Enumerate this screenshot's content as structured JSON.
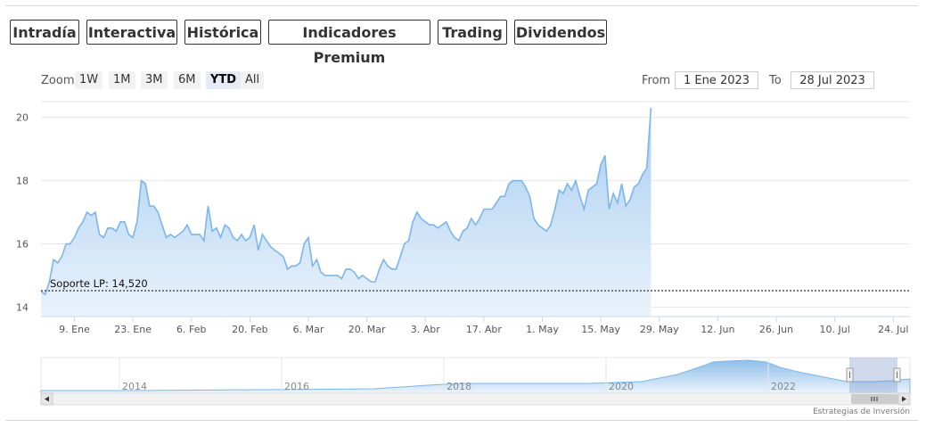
{
  "tabs": [
    {
      "label": "Intradía",
      "style": "purple",
      "active": false
    },
    {
      "label": "Interactiva",
      "style": "purple",
      "active": false
    },
    {
      "label": "Histórica",
      "style": "purple",
      "active": true
    },
    {
      "label": "Indicadores Premium",
      "style": "red",
      "active": false
    },
    {
      "label": "Trading",
      "style": "red",
      "active": false
    },
    {
      "label": "Dividendos",
      "style": "purple",
      "active": false
    }
  ],
  "zoom": {
    "label": "Zoom",
    "buttons": [
      "1W",
      "1M",
      "3M",
      "6M",
      "YTD",
      "All"
    ],
    "selected": "YTD"
  },
  "range": {
    "from_label": "From",
    "from_value": "1 Ene 2023",
    "to_label": "To",
    "to_value": "28 Jul 2023"
  },
  "credit": "Estrategias de Inversión",
  "colors": {
    "line": "#7cb5ec",
    "fill_top": "#a7cdf0",
    "fill_bottom": "#eaf3fc",
    "purple": "#7c7aa8",
    "red": "#dd7d86",
    "support": "#000000",
    "navigator_mask": "#6685c2"
  },
  "chart_data": {
    "type": "area",
    "ylim": [
      13.7,
      20.5
    ],
    "yticks": [
      14,
      16,
      18,
      20
    ],
    "xlim": [
      0,
      208
    ],
    "xtick_labels": [
      {
        "x": 8,
        "label": "9. Ene"
      },
      {
        "x": 22,
        "label": "23. Ene"
      },
      {
        "x": 36,
        "label": "6. Feb"
      },
      {
        "x": 50,
        "label": "20. Feb"
      },
      {
        "x": 64,
        "label": "6. Mar"
      },
      {
        "x": 78,
        "label": "20. Mar"
      },
      {
        "x": 92,
        "label": "3. Abr"
      },
      {
        "x": 106,
        "label": "17. Abr"
      },
      {
        "x": 120,
        "label": "1. May"
      },
      {
        "x": 134,
        "label": "15. May"
      },
      {
        "x": 148,
        "label": "29. May"
      },
      {
        "x": 162,
        "label": "12. Jun"
      },
      {
        "x": 176,
        "label": "26. Jun"
      },
      {
        "x": 190,
        "label": "10. Jul"
      },
      {
        "x": 204,
        "label": "24. Jul"
      }
    ],
    "series": [
      {
        "values": [
          [
            0,
            14.5
          ],
          [
            1,
            14.4
          ],
          [
            2,
            14.8
          ],
          [
            3,
            15.5
          ],
          [
            4,
            15.4
          ],
          [
            5,
            15.6
          ],
          [
            6,
            16.0
          ],
          [
            7,
            16.0
          ],
          [
            8,
            16.2
          ],
          [
            9,
            16.5
          ],
          [
            10,
            16.7
          ],
          [
            11,
            17.0
          ],
          [
            12,
            16.9
          ],
          [
            13,
            17.0
          ],
          [
            14,
            16.3
          ],
          [
            15,
            16.2
          ],
          [
            16,
            16.5
          ],
          [
            17,
            16.5
          ],
          [
            18,
            16.4
          ],
          [
            19,
            16.7
          ],
          [
            20,
            16.7
          ],
          [
            21,
            16.3
          ],
          [
            22,
            16.2
          ],
          [
            23,
            16.7
          ],
          [
            24,
            18.0
          ],
          [
            25,
            17.9
          ],
          [
            26,
            17.2
          ],
          [
            27,
            17.2
          ],
          [
            28,
            17.0
          ],
          [
            29,
            16.6
          ],
          [
            30,
            16.2
          ],
          [
            31,
            16.3
          ],
          [
            32,
            16.2
          ],
          [
            33,
            16.3
          ],
          [
            34,
            16.4
          ],
          [
            35,
            16.6
          ],
          [
            36,
            16.3
          ],
          [
            37,
            16.3
          ],
          [
            38,
            16.3
          ],
          [
            39,
            16.1
          ],
          [
            40,
            17.2
          ],
          [
            41,
            16.4
          ],
          [
            42,
            16.5
          ],
          [
            43,
            16.2
          ],
          [
            44,
            16.6
          ],
          [
            45,
            16.5
          ],
          [
            46,
            16.2
          ],
          [
            47,
            16.1
          ],
          [
            48,
            16.3
          ],
          [
            49,
            16.1
          ],
          [
            50,
            16.2
          ],
          [
            51,
            16.6
          ],
          [
            52,
            15.8
          ],
          [
            53,
            16.3
          ],
          [
            54,
            16.1
          ],
          [
            55,
            15.9
          ],
          [
            56,
            15.8
          ],
          [
            57,
            15.7
          ],
          [
            58,
            15.6
          ],
          [
            59,
            15.2
          ],
          [
            60,
            15.3
          ],
          [
            61,
            15.3
          ],
          [
            62,
            15.4
          ],
          [
            63,
            16.0
          ],
          [
            64,
            16.2
          ],
          [
            65,
            15.3
          ],
          [
            66,
            15.5
          ],
          [
            67,
            15.1
          ],
          [
            68,
            15.0
          ],
          [
            69,
            15.0
          ],
          [
            70,
            15.0
          ],
          [
            71,
            15.0
          ],
          [
            72,
            14.9
          ],
          [
            73,
            15.2
          ],
          [
            74,
            15.2
          ],
          [
            75,
            15.1
          ],
          [
            76,
            14.9
          ],
          [
            77,
            15.0
          ],
          [
            78,
            14.9
          ],
          [
            79,
            14.8
          ],
          [
            80,
            14.8
          ],
          [
            81,
            15.2
          ],
          [
            82,
            15.5
          ],
          [
            83,
            15.3
          ],
          [
            84,
            15.2
          ],
          [
            85,
            15.2
          ],
          [
            86,
            15.6
          ],
          [
            87,
            16.0
          ],
          [
            88,
            16.1
          ],
          [
            89,
            16.7
          ],
          [
            90,
            17.0
          ],
          [
            91,
            16.8
          ],
          [
            92,
            16.7
          ],
          [
            93,
            16.6
          ],
          [
            94,
            16.6
          ],
          [
            95,
            16.5
          ],
          [
            96,
            16.6
          ],
          [
            97,
            16.7
          ],
          [
            98,
            16.4
          ],
          [
            99,
            16.2
          ],
          [
            100,
            16.1
          ],
          [
            101,
            16.4
          ],
          [
            102,
            16.5
          ],
          [
            103,
            16.8
          ],
          [
            104,
            16.6
          ],
          [
            105,
            16.8
          ],
          [
            106,
            17.1
          ],
          [
            107,
            17.1
          ],
          [
            108,
            17.1
          ],
          [
            109,
            17.3
          ],
          [
            110,
            17.5
          ],
          [
            111,
            17.5
          ],
          [
            112,
            17.9
          ],
          [
            113,
            18.0
          ],
          [
            114,
            18.0
          ],
          [
            115,
            18.0
          ],
          [
            116,
            17.8
          ],
          [
            117,
            17.5
          ],
          [
            118,
            16.8
          ],
          [
            119,
            16.6
          ],
          [
            120,
            16.5
          ],
          [
            121,
            16.4
          ],
          [
            122,
            16.6
          ],
          [
            123,
            17.1
          ],
          [
            124,
            17.7
          ],
          [
            125,
            17.6
          ],
          [
            126,
            17.9
          ],
          [
            127,
            17.7
          ],
          [
            128,
            18.0
          ],
          [
            129,
            17.5
          ],
          [
            130,
            17.1
          ],
          [
            131,
            17.7
          ],
          [
            132,
            17.8
          ],
          [
            133,
            17.9
          ],
          [
            134,
            18.5
          ],
          [
            135,
            18.8
          ],
          [
            136,
            17.1
          ],
          [
            137,
            17.6
          ],
          [
            138,
            17.3
          ],
          [
            139,
            17.9
          ],
          [
            140,
            17.2
          ],
          [
            141,
            17.4
          ],
          [
            142,
            17.8
          ],
          [
            143,
            17.9
          ],
          [
            144,
            18.2
          ],
          [
            145,
            18.4
          ],
          [
            146,
            20.3
          ]
        ]
      }
    ],
    "support": {
      "label": "Soporte LP: 14,520",
      "value": 14.52
    },
    "navigator": {
      "year_labels": [
        "2014",
        "2016",
        "2018",
        "2020",
        "2022"
      ]
    }
  }
}
